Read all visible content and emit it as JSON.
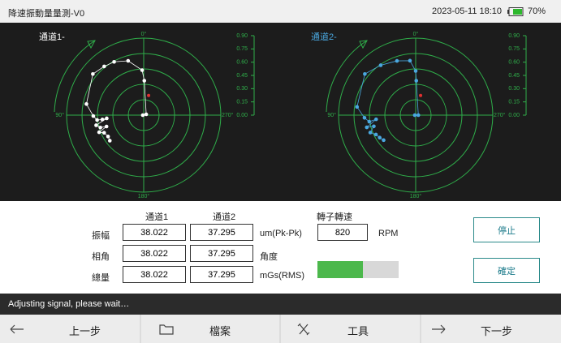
{
  "header": {
    "title": "降速振動量量測-V0",
    "datetime": "2023-05-11 18:10",
    "battery": "70%"
  },
  "plots": [
    {
      "label": "通道1-",
      "color": "#ffffff",
      "label_color": "#ffffff",
      "angle_labels": [
        "0°",
        "90°",
        "180°",
        "270°"
      ],
      "scale_ticks": [
        {
          "value": 0.9,
          "label": "0.90"
        },
        {
          "value": 0.75,
          "label": "0.75"
        },
        {
          "value": 0.6,
          "label": "0.60"
        },
        {
          "value": 0.45,
          "label": "0.45"
        },
        {
          "value": 0.3,
          "label": "0.30"
        },
        {
          "value": 0.15,
          "label": "0.15"
        },
        {
          "value": 0,
          "label": "0.00"
        }
      ],
      "points": [
        [
          0.01,
          90
        ],
        [
          0.03,
          288
        ],
        [
          0.39,
          359
        ],
        [
          0.51,
          2
        ],
        [
          0.64,
          16
        ],
        [
          0.69,
          29
        ],
        [
          0.71,
          39
        ],
        [
          0.74,
          51
        ],
        [
          0.66,
          79
        ],
        [
          0.57,
          91
        ],
        [
          0.53,
          96
        ],
        [
          0.47,
          96
        ],
        [
          0.42,
          95
        ],
        [
          0.55,
          102
        ],
        [
          0.51,
          106
        ],
        [
          0.44,
          107
        ],
        [
          0.54,
          111
        ],
        [
          0.49,
          114
        ],
        [
          0.47,
          121
        ],
        [
          0.48,
          127
        ]
      ],
      "marker": [
        0.23,
        346
      ],
      "marker_color": "#e03030"
    },
    {
      "label": "通道2-",
      "color": "#4aa8e0",
      "label_color": "#4aa8e0",
      "angle_labels": [
        "0°",
        "90°",
        "180°",
        "270°"
      ],
      "scale_ticks": [
        {
          "value": 0.9,
          "label": "0.90"
        },
        {
          "value": 0.75,
          "label": "0.75"
        },
        {
          "value": 0.6,
          "label": "0.60"
        },
        {
          "value": 0.45,
          "label": "0.45"
        },
        {
          "value": 0.3,
          "label": "0.30"
        },
        {
          "value": 0.15,
          "label": "0.15"
        },
        {
          "value": 0,
          "label": "0.00"
        }
      ],
      "points": [
        [
          0.01,
          90
        ],
        [
          0.03,
          270
        ],
        [
          0.39,
          359
        ],
        [
          0.5,
          0
        ],
        [
          0.62,
          6
        ],
        [
          0.65,
          19
        ],
        [
          0.69,
          35
        ],
        [
          0.74,
          51
        ],
        [
          0.67,
          82
        ],
        [
          0.58,
          93
        ],
        [
          0.53,
          98
        ],
        [
          0.45,
          96
        ],
        [
          0.57,
          104
        ],
        [
          0.49,
          105
        ],
        [
          0.55,
          111
        ],
        [
          0.5,
          116
        ],
        [
          0.48,
          122
        ],
        [
          0.46,
          128
        ]
      ],
      "marker": [
        0.23,
        346
      ],
      "marker_color": "#e03030"
    }
  ],
  "table": {
    "columns": [
      "通道1",
      "通道2"
    ],
    "rows": [
      {
        "label": "振幅",
        "values": [
          "38.022",
          "37.295"
        ],
        "unit": "um(Pk-Pk)"
      },
      {
        "label": "相角",
        "values": [
          "38.022",
          "37.295"
        ],
        "unit": "角度"
      },
      {
        "label": "總量",
        "values": [
          "38.022",
          "37.295"
        ],
        "unit": "mGs(RMS)"
      }
    ]
  },
  "rotor": {
    "label": "轉子轉速",
    "value": "820",
    "unit": "RPM",
    "progress": 56
  },
  "buttons": [
    "停止",
    "確定"
  ],
  "status": "Adjusting signal, please wait…",
  "nav": [
    "上一步",
    "檔案",
    "工具",
    "下一步"
  ]
}
